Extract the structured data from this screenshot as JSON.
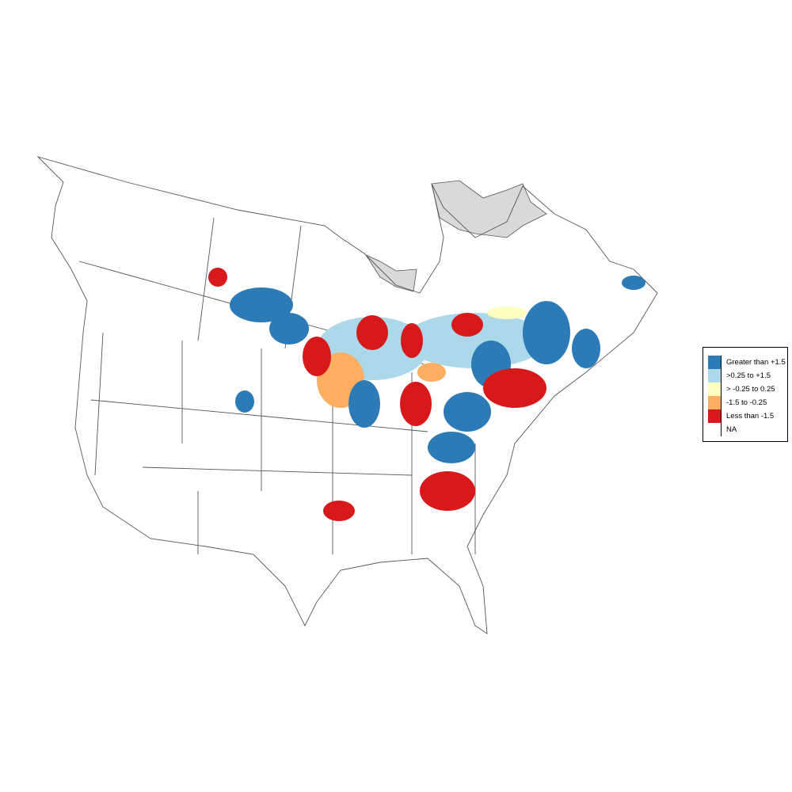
{
  "map": {
    "legend": {
      "items": [
        {
          "label": "Greater than +1.5",
          "color": "#2c7bb6"
        },
        {
          "label": ">0.25 to +1.5",
          "color": "#abd9e9"
        },
        {
          "label": "> -0.25 to 0.25",
          "color": "#ffffbf"
        },
        {
          "label": "-1.5 to -0.25",
          "color": "#fdae61"
        },
        {
          "label": "Less than -1.5",
          "color": "#d7191c"
        },
        {
          "label": "NA",
          "color": "#ffffff"
        }
      ]
    },
    "na_region_color": "#d9d9d9",
    "boundary_color": "#555555"
  }
}
